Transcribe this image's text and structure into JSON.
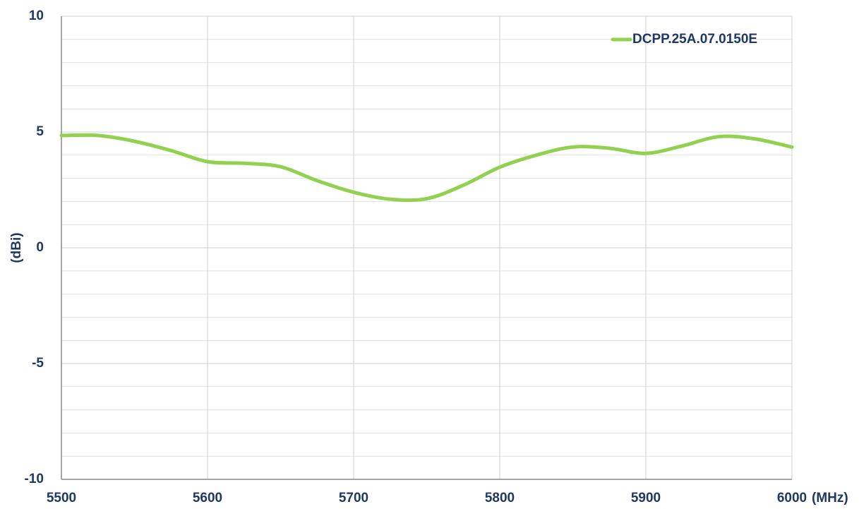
{
  "chart_data": {
    "type": "line",
    "x": [
      5500,
      5525,
      5550,
      5575,
      5600,
      5625,
      5650,
      5675,
      5700,
      5725,
      5750,
      5775,
      5800,
      5825,
      5850,
      5875,
      5900,
      5925,
      5950,
      5975,
      6000
    ],
    "series": [
      {
        "name": "DCPP.25A.07.0150E",
        "color": "#92d050",
        "values": [
          4.85,
          4.85,
          4.6,
          4.2,
          3.72,
          3.65,
          3.5,
          2.9,
          2.4,
          2.1,
          2.12,
          2.7,
          3.48,
          4.0,
          4.35,
          4.3,
          4.08,
          4.4,
          4.8,
          4.7,
          4.35
        ]
      }
    ],
    "xlabel": "(MHz)",
    "ylabel": "(dBi)",
    "xlim": [
      5500,
      6000
    ],
    "xticks": [
      5500,
      5600,
      5700,
      5800,
      5900,
      6000
    ],
    "ylim": [
      -10,
      10
    ],
    "yticks": [
      -10,
      -5,
      0,
      5,
      10
    ],
    "minor_yticks": [
      -9,
      -8,
      -7,
      -6,
      -4,
      -3,
      -2,
      -1,
      1,
      2,
      3,
      4,
      6,
      7,
      8,
      9
    ],
    "grid": true,
    "legend": "upper right"
  }
}
